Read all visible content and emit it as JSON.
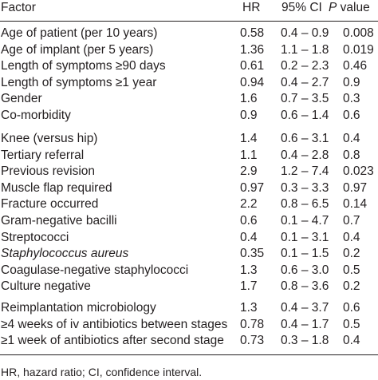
{
  "header": {
    "factor": "Factor",
    "hr": "HR",
    "ci": "95% CI",
    "p_italic": "P",
    "p_rest": " value"
  },
  "groups": [
    [
      {
        "factor": "Age of patient (per 10 years)",
        "hr": "0.58",
        "ci": "0.4 – 0.9",
        "p": "0.008"
      },
      {
        "factor": "Age of implant (per 5 years)",
        "hr": "1.36",
        "ci": "1.1 – 1.8",
        "p": "0.019"
      },
      {
        "factor": "Length of symptoms ≥90 days",
        "hr": "0.61",
        "ci": "0.2 – 2.3",
        "p": "0.46"
      },
      {
        "factor": "Length of symptoms ≥1 year",
        "hr": "0.94",
        "ci": "0.4 – 2.7",
        "p": "0.9"
      },
      {
        "factor": "Gender",
        "hr": "1.6",
        "ci": "0.7 – 3.5",
        "p": "0.3"
      },
      {
        "factor": "Co-morbidity",
        "hr": "0.9",
        "ci": "0.6 – 1.4",
        "p": "0.6"
      }
    ],
    [
      {
        "factor": "Knee (versus hip)",
        "hr": "1.4",
        "ci": "0.6 – 3.1",
        "p": "0.4"
      },
      {
        "factor": "Tertiary referral",
        "hr": "1.1",
        "ci": "0.4 – 2.8",
        "p": "0.8"
      },
      {
        "factor": "Previous revision",
        "hr": "2.9",
        "ci": "1.2 – 7.4",
        "p": "0.023"
      },
      {
        "factor": "Muscle flap required",
        "hr": "0.97",
        "ci": "0.3 – 3.3",
        "p": "0.97"
      },
      {
        "factor": "Fracture occurred",
        "hr": "2.2",
        "ci": "0.8 – 6.5",
        "p": "0.14"
      },
      {
        "factor": "Gram-negative bacilli",
        "hr": "0.6",
        "ci": "0.1 – 4.7",
        "p": "0.7"
      },
      {
        "factor": "Streptococci",
        "hr": "0.4",
        "ci": "0.1 – 3.1",
        "p": "0.4"
      },
      {
        "factor": "Staphylococcus aureus",
        "hr": "0.35",
        "ci": "0.1 – 1.5",
        "p": "0.2",
        "italic": true
      },
      {
        "factor": "Coagulase-negative staphylococci",
        "hr": "1.3",
        "ci": "0.6 – 3.0",
        "p": "0.5"
      },
      {
        "factor": "Culture negative",
        "hr": "1.7",
        "ci": "0.8 – 3.6",
        "p": "0.2"
      }
    ],
    [
      {
        "factor": "Reimplantation microbiology",
        "hr": "1.3",
        "ci": "0.4 – 3.7",
        "p": "0.6"
      },
      {
        "factor": "≥4 weeks of iv antibiotics between stages",
        "hr": "0.78",
        "ci": "0.4 – 1.7",
        "p": "0.5"
      },
      {
        "factor": "≥1 week of antibiotics after second stage",
        "hr": "0.73",
        "ci": "0.3 – 1.8",
        "p": "0.4"
      }
    ]
  ],
  "footnote": "HR, hazard ratio; CI, confidence interval."
}
